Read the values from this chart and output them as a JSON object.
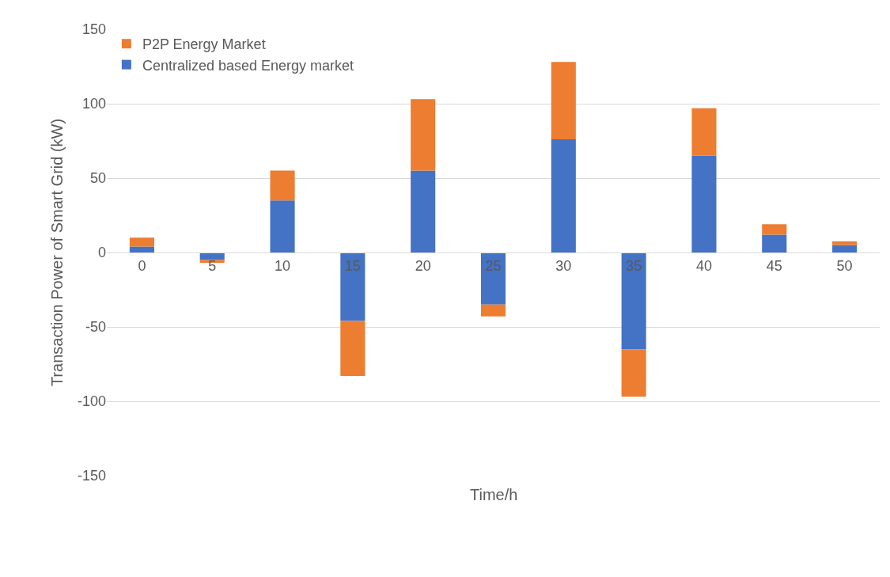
{
  "chart_data": {
    "type": "bar",
    "stacked": true,
    "xlabel": "Time/h",
    "ylabel": "Transaction Power of Smart Grid (kW)",
    "categories": [
      "0",
      "5",
      "10",
      "15",
      "20",
      "25",
      "30",
      "35",
      "40",
      "45",
      "50"
    ],
    "series": [
      {
        "name": "Centralized based Energy market",
        "color": "#4472c4",
        "values": [
          4,
          -5,
          35,
          -46,
          55,
          -35,
          76,
          -65,
          65,
          12,
          5
        ]
      },
      {
        "name": "P2P Energy Market",
        "color": "#ed7d31",
        "values": [
          6,
          -2,
          20,
          -37,
          48,
          -8,
          52,
          -32,
          32,
          7,
          2.5
        ]
      }
    ],
    "ylim": [
      -150,
      150
    ],
    "yticks": [
      -150,
      -100,
      -50,
      0,
      50,
      100,
      150
    ],
    "grid": "y",
    "legend": "top left"
  }
}
